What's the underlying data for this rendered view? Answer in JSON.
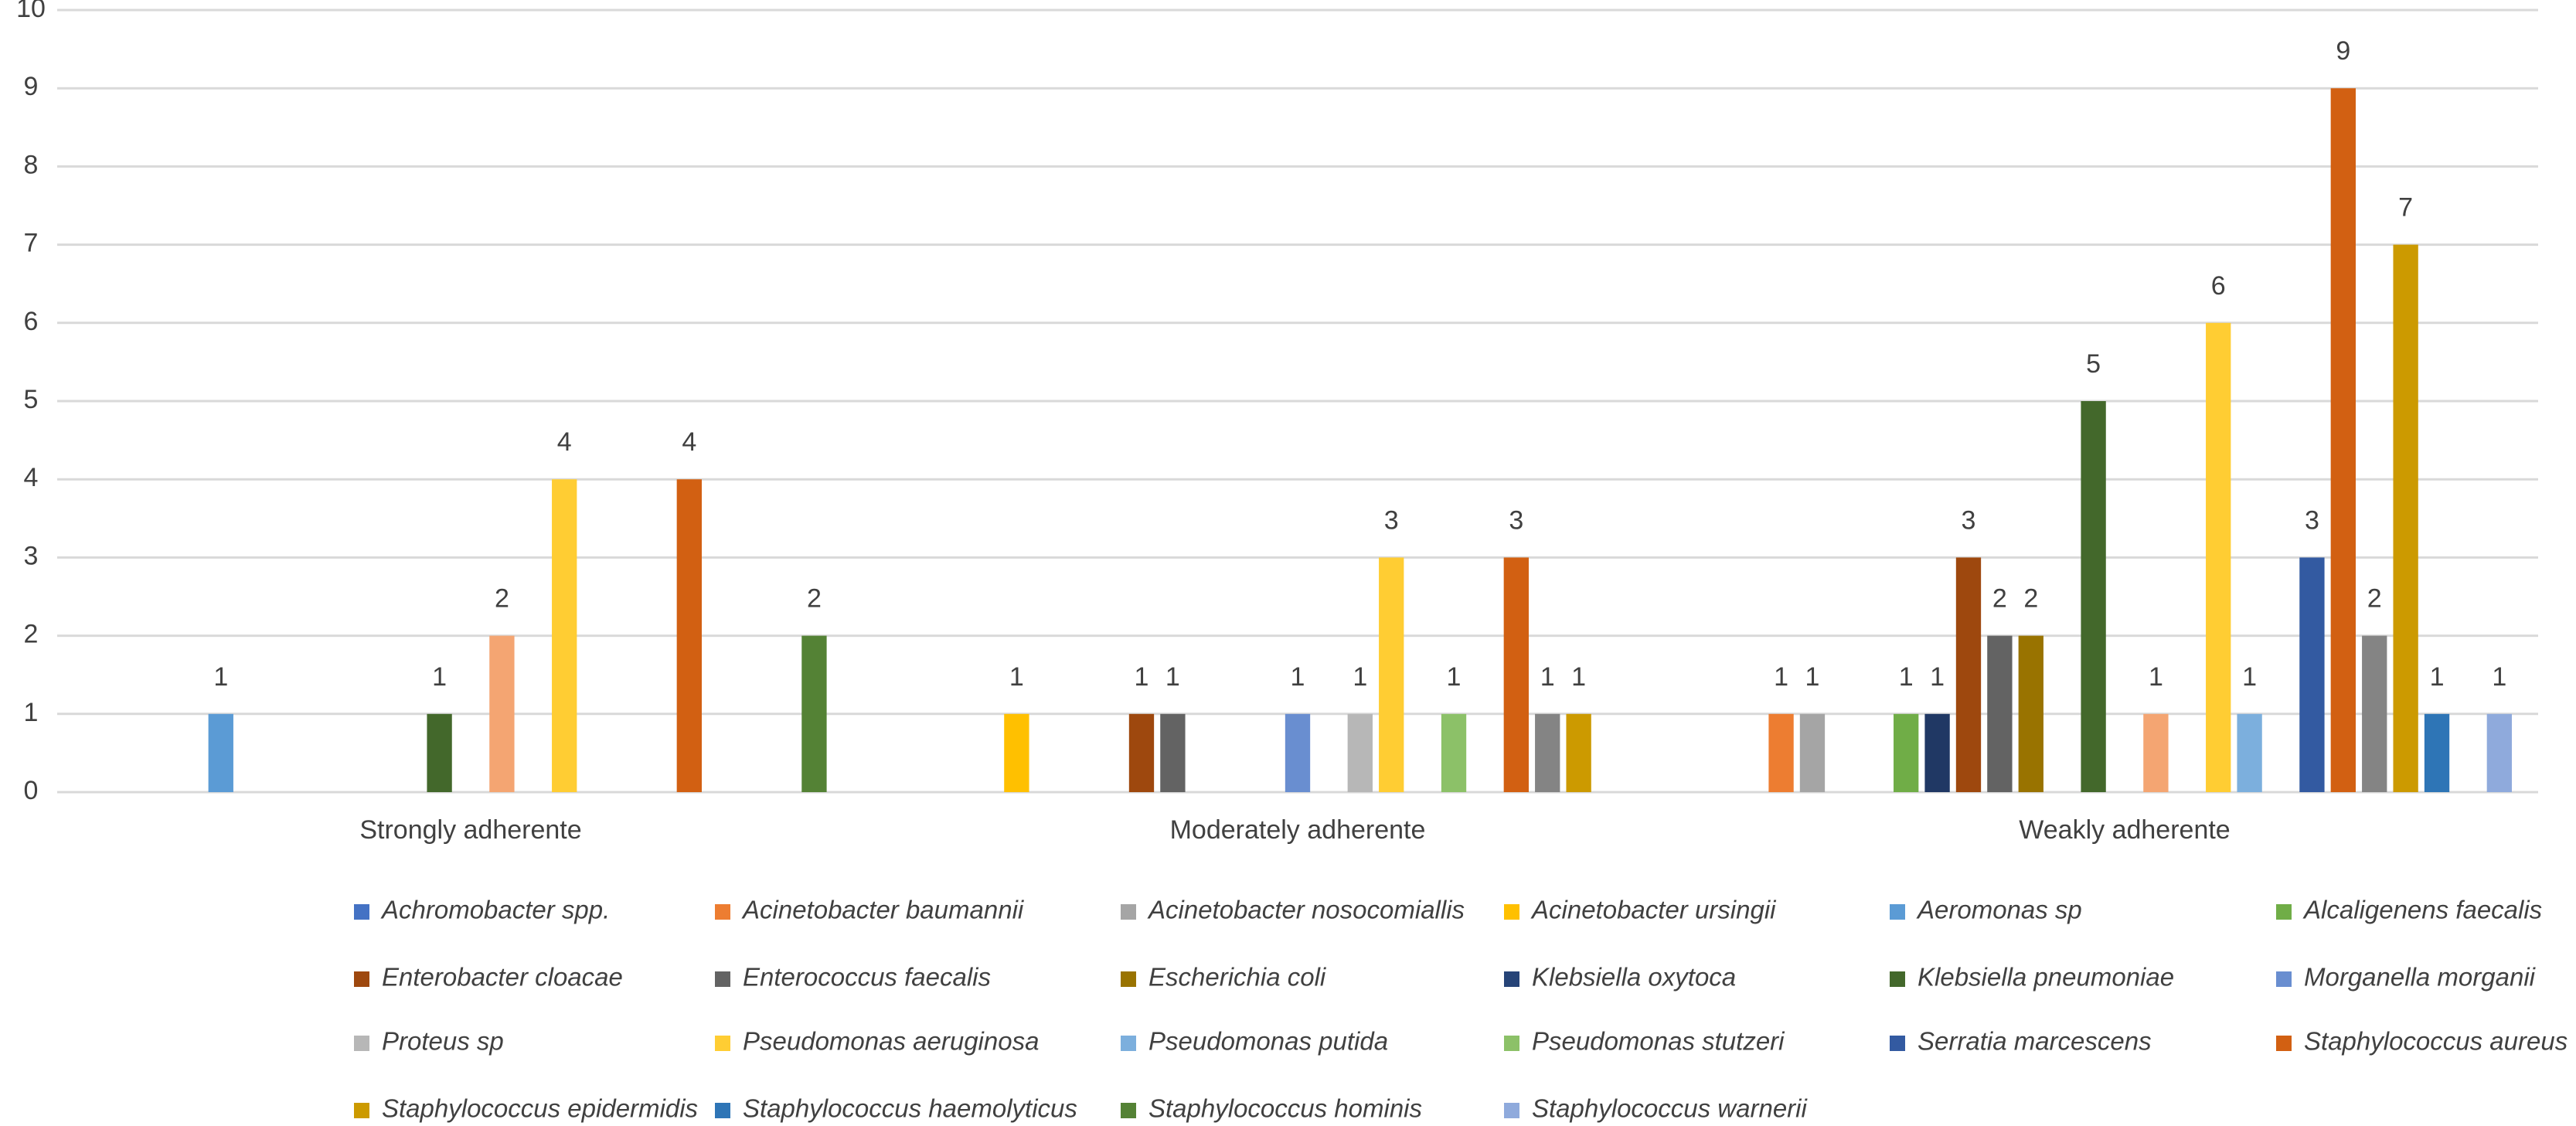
{
  "chart_data": {
    "type": "bar",
    "categories": [
      "Strongly adherente",
      "Moderately adherente",
      "Weakly adherente"
    ],
    "ylim": [
      0,
      10
    ],
    "yticks": [
      0,
      1,
      2,
      3,
      4,
      5,
      6,
      7,
      8,
      9,
      10
    ],
    "grid": true,
    "legend": "bottom",
    "series": [
      {
        "name": "Achromobacter spp.",
        "color": "#4472c4",
        "values": [
          null,
          null,
          null
        ]
      },
      {
        "name": "Acinetobacter baumannii",
        "color": "#ed7d31",
        "values": [
          null,
          null,
          1
        ]
      },
      {
        "name": "Acinetobacter nosocomiallis",
        "color": "#a5a5a5",
        "values": [
          null,
          null,
          1
        ]
      },
      {
        "name": "Acinetobacter ursingii",
        "color": "#ffc000",
        "values": [
          null,
          1,
          null
        ]
      },
      {
        "name": "Aeromonas sp",
        "color": "#5b9bd5",
        "values": [
          1,
          null,
          null
        ]
      },
      {
        "name": "Alcaligenens faecalis",
        "color": "#70ad47",
        "values": [
          null,
          null,
          1
        ]
      },
      {
        "color": "#203864",
        "values": [
          null,
          null,
          1
        ]
      },
      {
        "name": "Enterobacter cloacae",
        "color": "#9e480e",
        "values": [
          null,
          1,
          3
        ]
      },
      {
        "name": "Enterococcus faecalis",
        "color": "#636363",
        "values": [
          null,
          1,
          2
        ]
      },
      {
        "name": "Escherichia coli",
        "color": "#997300",
        "values": [
          null,
          null,
          2
        ]
      },
      {
        "name": "Klebsiella oxytoca",
        "color": "#264478",
        "values": [
          null,
          null,
          null
        ]
      },
      {
        "name": "Klebsiella pneumoniae",
        "color": "#43682b",
        "values": [
          1,
          null,
          5
        ]
      },
      {
        "name": "Morganella morganii",
        "color": "#698ed0",
        "values": [
          null,
          1,
          null
        ]
      },
      {
        "color": "#f4a572",
        "values": [
          2,
          null,
          1
        ]
      },
      {
        "name": "Proteus sp",
        "color": "#b7b7b7",
        "values": [
          null,
          1,
          null
        ]
      },
      {
        "name": "Pseudomonas aeruginosa",
        "color": "#ffcd33",
        "values": [
          4,
          3,
          6
        ]
      },
      {
        "name": "Pseudomonas putida",
        "color": "#7cafdd",
        "values": [
          null,
          null,
          1
        ]
      },
      {
        "name": "Pseudomonas stutzeri",
        "color": "#8cc168",
        "values": [
          null,
          1,
          null
        ]
      },
      {
        "name": "Serratia marcescens",
        "color": "#335aa1",
        "values": [
          null,
          null,
          3
        ]
      },
      {
        "name": "Staphylococcus aureus",
        "color": "#d26012",
        "values": [
          4,
          3,
          9
        ]
      },
      {
        "color": "#848484",
        "values": [
          null,
          1,
          2
        ]
      },
      {
        "name": "Staphylococcus epidermidis",
        "color": "#cc9a00",
        "values": [
          null,
          1,
          7
        ]
      },
      {
        "name": "Staphylococcus haemolyticus",
        "color": "#2e75b6",
        "values": [
          null,
          null,
          1
        ]
      },
      {
        "name": "Staphylococcus hominis",
        "color": "#548235",
        "values": [
          2,
          null,
          null
        ]
      },
      {
        "name": "Staphylococcus warnerii",
        "color": "#8faadc",
        "values": [
          null,
          null,
          1
        ]
      }
    ]
  }
}
